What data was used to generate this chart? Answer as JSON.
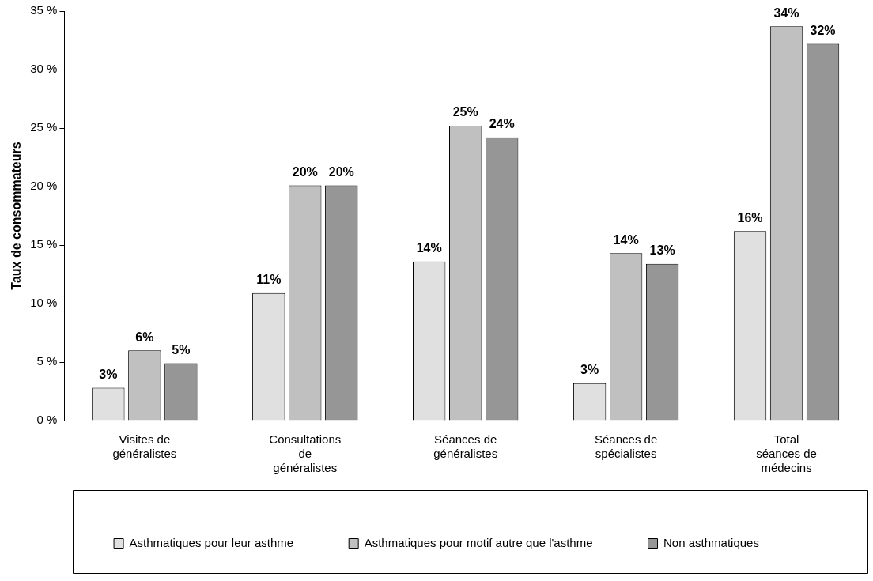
{
  "chart_data": {
    "type": "bar",
    "ylabel": "Taux de consommateurs",
    "categories": [
      "Visites de généralistes",
      "Consultations de généralistes",
      "Séances de généralistes",
      "Séances de spécialistes",
      "Total séances de médecins"
    ],
    "series": [
      {
        "name": "Asthmatiques pour leur asthme",
        "color": "#e0e0e0",
        "values": [
          2.8,
          10.9,
          13.6,
          3.2,
          16.2
        ],
        "value_labels": [
          "3%",
          "11%",
          "14%",
          "3%",
          "16%"
        ]
      },
      {
        "name": "Asthmatiques pour motif autre que l'asthme",
        "color": "#c0c0c0",
        "values": [
          6.0,
          20.1,
          25.2,
          14.3,
          33.7
        ],
        "value_labels": [
          "6%",
          "20%",
          "25%",
          "14%",
          "34%"
        ]
      },
      {
        "name": "Non asthmatiques",
        "color": "#969696",
        "values": [
          4.9,
          20.1,
          24.2,
          13.4,
          32.2
        ],
        "value_labels": [
          "5%",
          "20%",
          "24%",
          "13%",
          "32%"
        ]
      }
    ],
    "ylim": [
      0,
      35
    ],
    "yticks": [
      {
        "value": 0,
        "label": "0 %"
      },
      {
        "value": 5,
        "label": "5 %"
      },
      {
        "value": 10,
        "label": "10 %"
      },
      {
        "value": 15,
        "label": "15 %"
      },
      {
        "value": 20,
        "label": "20 %"
      },
      {
        "value": 25,
        "label": "25 %"
      },
      {
        "value": 30,
        "label": "30 %"
      },
      {
        "value": 35,
        "label": "35 %"
      }
    ],
    "grid": false,
    "legend": "bottom"
  }
}
